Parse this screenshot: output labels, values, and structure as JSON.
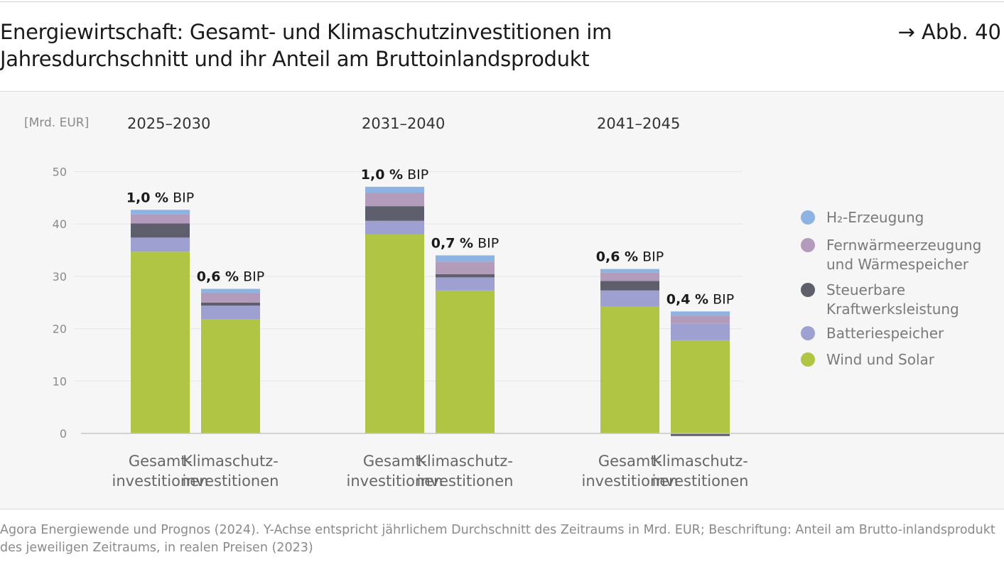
{
  "header": {
    "title": "Energiewirtschaft: Gesamt- und Klimaschutzinvestitionen im Jahresdurchschnitt und ihr Anteil am Bruttoinlandsprodukt",
    "figure_ref": "→ Abb. 40"
  },
  "footer": {
    "source": "Agora Energiewende und Prognos (2024). Y-Achse entspricht jährlichem Durchschnitt des Zeitraums in Mrd. EUR; Beschriftung: Anteil am Brutto-inlandsprodukt des jeweiligen Zeitraums, in realen Preisen (2023)"
  },
  "colors": {
    "wind_solar": "#afc543",
    "battery": "#9da0d0",
    "dispatchable": "#5e5e6c",
    "district_heat": "#b39bbb",
    "h2": "#8db3e2",
    "text": "#1a1a1a",
    "axis_text": "#8a8a8a",
    "grid": "#e6e6e6",
    "baseline": "#c6c6c6"
  },
  "chart_data": {
    "type": "bar",
    "stacked": true,
    "unit_label": "[Mrd. EUR]",
    "ylim": [
      0,
      50
    ],
    "yticks": [
      0,
      10,
      20,
      30,
      40,
      50
    ],
    "grid": true,
    "legend_position": "right",
    "groups": [
      {
        "label": "2025–2030"
      },
      {
        "label": "2031–2040"
      },
      {
        "label": "2041–2045"
      }
    ],
    "bar_types": [
      {
        "line1": "Gesamt-",
        "line2": "investitionen"
      },
      {
        "line1": "Klimaschutz-",
        "line2": "investitionen"
      }
    ],
    "series": [
      {
        "name": "Wind und Solar",
        "color": "#afc543",
        "values": [
          34.7,
          21.8,
          38.0,
          27.3,
          24.2,
          17.8
        ]
      },
      {
        "name": "Batteriespeicher",
        "color": "#9da0d0",
        "values": [
          2.7,
          2.6,
          2.6,
          2.5,
          3.1,
          3.2
        ]
      },
      {
        "name": "Steuerbare Kraftwerksleistung",
        "color": "#5e5e6c",
        "values": [
          2.7,
          0.6,
          2.8,
          0.6,
          1.8,
          -0.5
        ]
      },
      {
        "name": "Fernwärmeerzeugung und Wärmespeicher",
        "color": "#b39bbb",
        "values": [
          1.8,
          1.8,
          2.6,
          2.4,
          1.6,
          1.5
        ]
      },
      {
        "name": "H₂-Erzeugung",
        "color": "#8db3e2",
        "values": [
          0.8,
          0.8,
          1.1,
          1.2,
          0.7,
          0.8
        ]
      }
    ],
    "legend": [
      {
        "line1": "H₂-Erzeugung",
        "line2": "",
        "color": "#8db3e2"
      },
      {
        "line1": "Fernwärmeerzeugung",
        "line2": "und Wärmespeicher",
        "color": "#b39bbb"
      },
      {
        "line1": "Steuerbare",
        "line2": "Kraftwerksleistung",
        "color": "#5e5e6c"
      },
      {
        "line1": "Batteriespeicher",
        "line2": "",
        "color": "#9da0d0"
      },
      {
        "line1": "Wind und Solar",
        "line2": "",
        "color": "#afc543"
      }
    ],
    "annotations": [
      {
        "bold": "1,0 %",
        "rest": " BIP"
      },
      {
        "bold": "0,6 %",
        "rest": " BIP"
      },
      {
        "bold": "1,0 %",
        "rest": " BIP"
      },
      {
        "bold": "0,7 %",
        "rest": " BIP"
      },
      {
        "bold": "0,6 %",
        "rest": " BIP"
      },
      {
        "bold": "0,4 %",
        "rest": " BIP"
      }
    ]
  }
}
